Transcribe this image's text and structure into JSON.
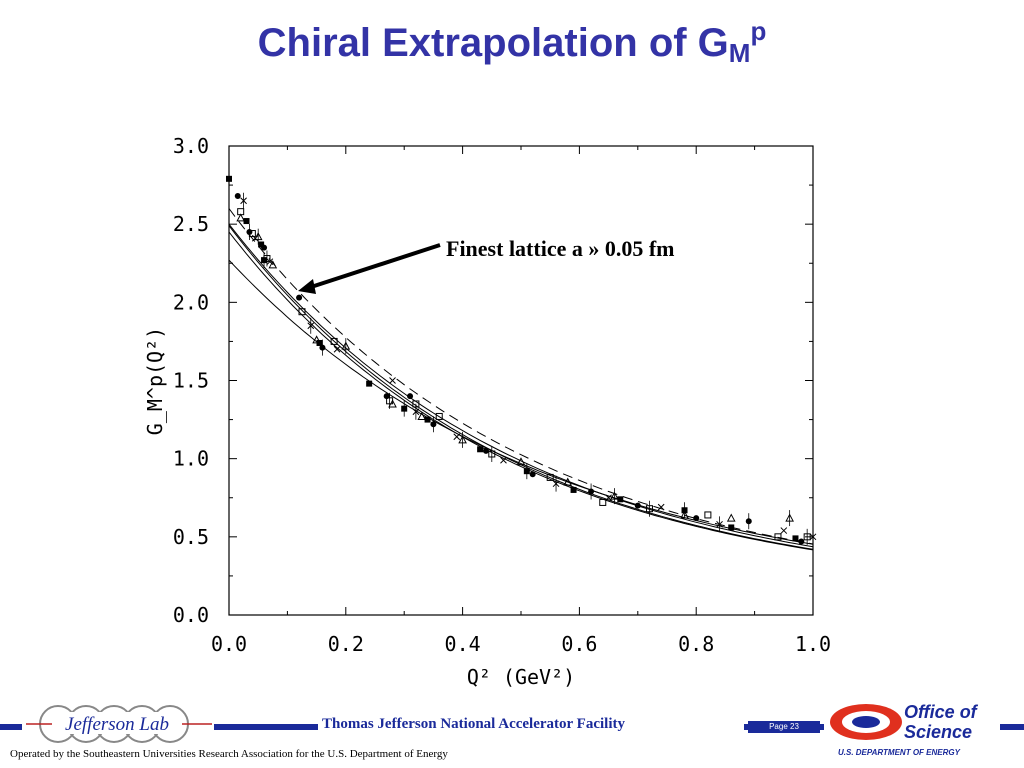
{
  "slide": {
    "title_main": "Chiral Extrapolation of G",
    "title_sub": "M",
    "title_sup": "p",
    "annotation": "Finest lattice a » 0.05 fm",
    "facility": "Thomas Jefferson National Accelerator Facility",
    "page_label": "Page 23",
    "operated_by": "Operated by the Southeastern Universities Research Association for the U.S. Department of  Energy",
    "lab_logo_text": "Jefferson Lab",
    "doe_office": "Office of",
    "doe_science": "Science",
    "doe_dept": "U.S. DEPARTMENT OF ENERGY",
    "colors": {
      "title": "#3333a6",
      "band": "#1a2a9a",
      "doe_red": "#e0301e"
    }
  },
  "chart_data": {
    "type": "scatter",
    "xlabel": "Q² (GeV²)",
    "ylabel": "G_M^p(Q²)",
    "xlim": [
      0.0,
      1.0
    ],
    "ylim": [
      0.0,
      3.0
    ],
    "xticks": [
      "0.0",
      "0.2",
      "0.4",
      "0.6",
      "0.8",
      "1.0"
    ],
    "yticks": [
      "0.0",
      "0.5",
      "1.0",
      "1.5",
      "2.0",
      "2.5",
      "3.0"
    ],
    "grid": false,
    "points": [
      [
        0.0,
        2.79
      ],
      [
        0.015,
        2.68
      ],
      [
        0.02,
        2.58
      ],
      [
        0.025,
        2.65
      ],
      [
        0.02,
        2.54
      ],
      [
        0.03,
        2.52
      ],
      [
        0.035,
        2.45
      ],
      [
        0.04,
        2.44
      ],
      [
        0.045,
        2.41
      ],
      [
        0.05,
        2.42
      ],
      [
        0.055,
        2.37
      ],
      [
        0.06,
        2.35
      ],
      [
        0.065,
        2.28
      ],
      [
        0.07,
        2.26
      ],
      [
        0.075,
        2.24
      ],
      [
        0.06,
        2.27
      ],
      [
        0.12,
        2.03
      ],
      [
        0.125,
        1.94
      ],
      [
        0.14,
        1.85
      ],
      [
        0.15,
        1.76
      ],
      [
        0.155,
        1.74
      ],
      [
        0.16,
        1.71
      ],
      [
        0.18,
        1.75
      ],
      [
        0.185,
        1.7
      ],
      [
        0.2,
        1.72
      ],
      [
        0.24,
        1.48
      ],
      [
        0.27,
        1.4
      ],
      [
        0.275,
        1.37
      ],
      [
        0.28,
        1.5
      ],
      [
        0.28,
        1.35
      ],
      [
        0.3,
        1.32
      ],
      [
        0.31,
        1.4
      ],
      [
        0.32,
        1.35
      ],
      [
        0.32,
        1.3
      ],
      [
        0.33,
        1.27
      ],
      [
        0.34,
        1.25
      ],
      [
        0.35,
        1.22
      ],
      [
        0.36,
        1.27
      ],
      [
        0.39,
        1.14
      ],
      [
        0.4,
        1.12
      ],
      [
        0.43,
        1.06
      ],
      [
        0.44,
        1.05
      ],
      [
        0.45,
        1.03
      ],
      [
        0.47,
        0.99
      ],
      [
        0.5,
        0.98
      ],
      [
        0.51,
        0.92
      ],
      [
        0.52,
        0.9
      ],
      [
        0.55,
        0.88
      ],
      [
        0.56,
        0.84
      ],
      [
        0.58,
        0.85
      ],
      [
        0.59,
        0.8
      ],
      [
        0.62,
        0.79
      ],
      [
        0.64,
        0.72
      ],
      [
        0.65,
        0.75
      ],
      [
        0.66,
        0.76
      ],
      [
        0.67,
        0.74
      ],
      [
        0.7,
        0.7
      ],
      [
        0.72,
        0.68
      ],
      [
        0.74,
        0.69
      ],
      [
        0.78,
        0.64
      ],
      [
        0.78,
        0.67
      ],
      [
        0.8,
        0.62
      ],
      [
        0.82,
        0.64
      ],
      [
        0.84,
        0.58
      ],
      [
        0.86,
        0.62
      ],
      [
        0.86,
        0.56
      ],
      [
        0.89,
        0.6
      ],
      [
        0.94,
        0.5
      ],
      [
        0.95,
        0.54
      ],
      [
        0.96,
        0.62
      ],
      [
        0.97,
        0.49
      ],
      [
        0.98,
        0.47
      ],
      [
        0.99,
        0.5
      ],
      [
        1.0,
        0.5
      ]
    ],
    "curves": [
      {
        "style": "solid",
        "y0": 2.5,
        "decay": 2.03
      },
      {
        "style": "solid",
        "y0": 2.49,
        "decay": 2.08
      },
      {
        "style": "solid",
        "y0": 2.45,
        "decay": 2.07
      },
      {
        "style": "solid",
        "y0": 2.27,
        "decay": 1.85
      },
      {
        "style": "dashed",
        "y0": 2.6,
        "decay": 2.03
      }
    ]
  }
}
